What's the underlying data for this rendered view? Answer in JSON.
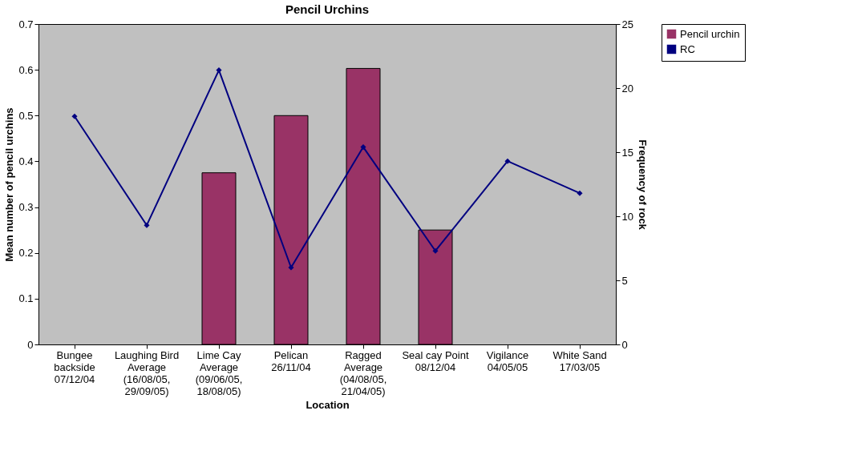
{
  "chart_data": {
    "type": "bar",
    "title": "Pencil Urchins",
    "xlabel": "Location",
    "ylabel": "Mean number of pencil urchins",
    "y2label": "Frequency of rock",
    "categories": [
      "Bungee\nbackside\n07/12/04",
      "Laughing Bird\nAverage\n(16/08/05,\n29/09/05)",
      "Lime Cay\nAverage\n(09/06/05,\n18/08/05)",
      "Pelican\n26/11/04",
      "Ragged\nAverage\n(04/08/05,\n21/04/05)",
      "Seal cay Point\n08/12/04",
      "Vigilance\n04/05/05",
      "White Sand\n17/03/05"
    ],
    "series": [
      {
        "name": "Pencil urchin",
        "color": "#993366",
        "values": [
          null,
          null,
          0.375,
          0.5,
          0.603,
          0.25,
          null,
          null
        ]
      },
      {
        "name": "RC",
        "type": "line",
        "axis": "y2",
        "color": "#000080",
        "marker": "diamond",
        "line_style": "solid",
        "values": [
          17.8,
          9.3,
          21.4,
          6.0,
          15.4,
          7.3,
          14.3,
          11.8
        ]
      }
    ],
    "ylim": [
      0,
      0.7
    ],
    "yticks": [
      0,
      0.1,
      0.2,
      0.3,
      0.4,
      0.5,
      0.6,
      0.7
    ],
    "y2lim": [
      0,
      25
    ],
    "y2ticks": [
      0,
      5,
      10,
      15,
      20,
      25
    ],
    "grid": false,
    "legend": "right"
  }
}
